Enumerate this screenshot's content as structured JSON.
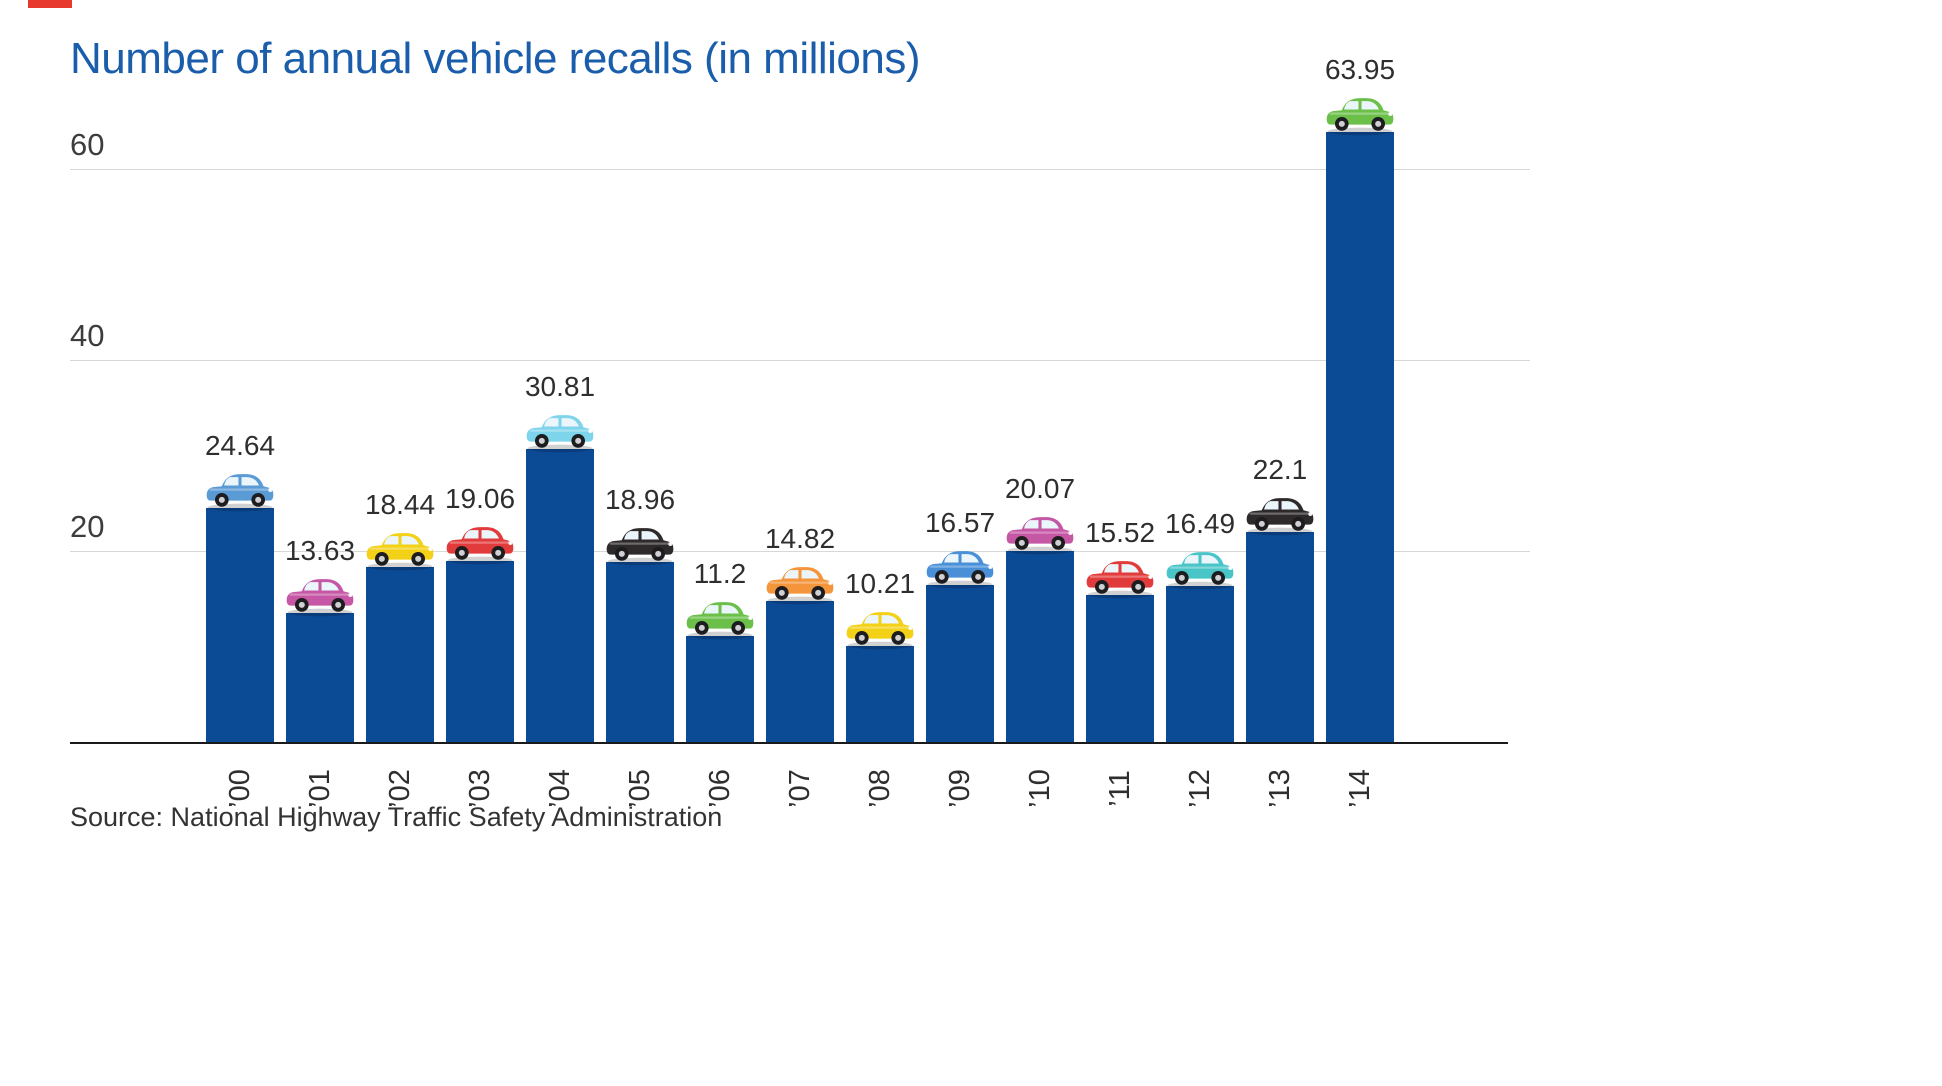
{
  "page": {
    "title": "Number of annual vehicle recalls (in millions)",
    "source": "Source: National Highway Traffic Safety Administration"
  },
  "colors": {
    "bar": "#0b4a94",
    "title": "#1a5dab",
    "axis": "#1a1a1a",
    "gridline": "#d8d8d8",
    "accent_mark": "#e8392e"
  },
  "chart_data": {
    "type": "bar",
    "title": "Number of annual vehicle recalls (in millions)",
    "categories": [
      "’00",
      "’01",
      "’02",
      "’03",
      "’04",
      "’05",
      "’06",
      "’07",
      "’08",
      "’09",
      "’10",
      "’11",
      "’12",
      "’13",
      "’14"
    ],
    "values": [
      24.64,
      13.63,
      18.44,
      19.06,
      30.81,
      18.96,
      11.2,
      14.82,
      10.21,
      16.57,
      20.07,
      15.52,
      16.49,
      22.1,
      63.95
    ],
    "value_labels": [
      "24.64",
      "13.63",
      "18.44",
      "19.06",
      "30.81",
      "18.96",
      "11.2",
      "14.82",
      "10.21",
      "16.57",
      "20.07",
      "15.52",
      "16.49",
      "22.1",
      "63.95"
    ],
    "car_colors": [
      "#5b9bd5",
      "#c557a5",
      "#f2d117",
      "#e23b3b",
      "#7ed4ea",
      "#2e2a2b",
      "#6cc04a",
      "#f5953b",
      "#f2d117",
      "#4a90d9",
      "#c557a5",
      "#e23b3b",
      "#49c5c8",
      "#2e2a2b",
      "#6cc04a"
    ],
    "xlabel": "",
    "ylabel": "",
    "yticks": [
      20,
      40,
      60
    ],
    "ylim": [
      0,
      69
    ],
    "grid": "horizontal",
    "legend": "none",
    "source": "Source: National Highway Traffic Safety Administration"
  }
}
